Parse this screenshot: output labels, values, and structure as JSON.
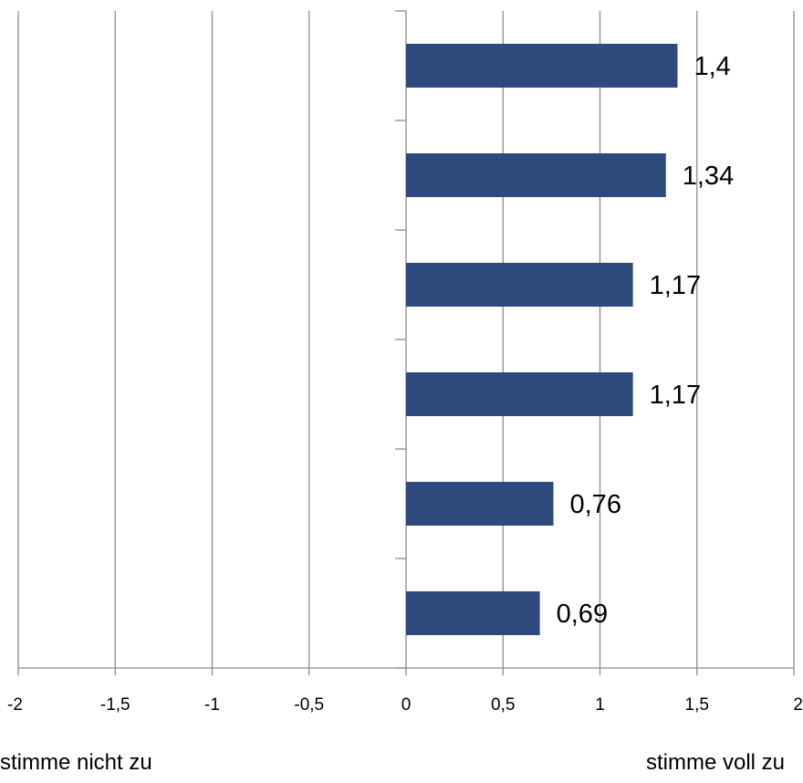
{
  "chart_data": {
    "type": "bar",
    "orientation": "horizontal",
    "title": "",
    "xlabel": "",
    "ylabel": "",
    "xlim": [
      -2,
      2
    ],
    "x_ticks": [
      -2,
      -1.5,
      -1,
      -0.5,
      0,
      0.5,
      1,
      1.5,
      2
    ],
    "x_tick_labels": [
      "-2",
      "-1,5",
      "-1",
      "-0,5",
      "0",
      "0,5",
      "1",
      "1,5",
      "2"
    ],
    "grid": "vertical",
    "legend": "none",
    "bar_color": "#2e4a7d",
    "values": [
      1.4,
      1.34,
      1.17,
      1.17,
      0.76,
      0.69
    ],
    "value_labels": [
      "1,4",
      "1,34",
      "1,17",
      "1,17",
      "0,76",
      "0,69"
    ],
    "scale_labels": {
      "left": "stimme nicht zu",
      "right": "stimme voll zu"
    }
  }
}
